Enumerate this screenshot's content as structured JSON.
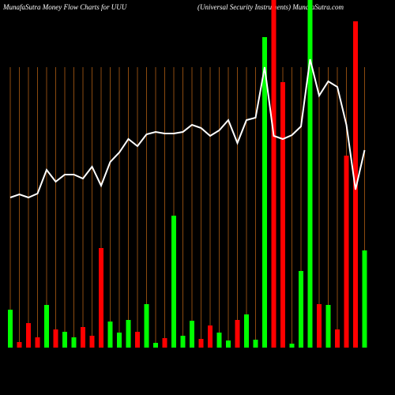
{
  "chart_data": {
    "type": "bar",
    "title": "MunafaSutra  Money Flow  Charts for UUU",
    "subtitle": "(Universal Security Instruments) MunafaSutra.com",
    "categories": [
      null,
      null,
      null,
      null,
      null,
      null,
      null,
      null,
      null,
      null,
      null,
      null,
      null,
      null,
      null,
      null,
      null,
      null,
      null,
      null,
      null,
      null,
      null,
      null,
      null,
      null,
      null,
      null,
      null,
      null,
      null,
      null,
      null,
      null,
      null,
      null,
      null,
      null,
      null,
      null
    ],
    "values": [
      48,
      7,
      31,
      13,
      54,
      23,
      20,
      13,
      26,
      15,
      126,
      33,
      19,
      35,
      20,
      55,
      6,
      12,
      167,
      15,
      34,
      11,
      28,
      19,
      9,
      35,
      42,
      10,
      393,
      440,
      336,
      5,
      97,
      440,
      55,
      54,
      23,
      243,
      413,
      123
    ],
    "colors": [
      "#00ff00",
      "#ff0000",
      "#ff0000",
      "#ff0000",
      "#00ff00",
      "#ff0000",
      "#00ff00",
      "#00ff00",
      "#ff0000",
      "#ff0000",
      "#ff0000",
      "#00ff00",
      "#00ff00",
      "#00ff00",
      "#ff0000",
      "#00ff00",
      "#00ff00",
      "#ff0000",
      "#00ff00",
      "#00ff00",
      "#00ff00",
      "#ff0000",
      "#ff0000",
      "#00ff00",
      "#00ff00",
      "#ff0000",
      "#00ff00",
      "#00ff00",
      "#00ff00",
      "#ff0000",
      "#ff0000",
      "#00ff00",
      "#00ff00",
      "#00ff00",
      "#ff0000",
      "#00ff00",
      "#ff0000",
      "#ff0000",
      "#ff0000",
      "#00ff00"
    ],
    "line_values": [
      190,
      194,
      190,
      195,
      225,
      210,
      219,
      219,
      214,
      229,
      205,
      235,
      247,
      264,
      255,
      270,
      273,
      271,
      271,
      273,
      282,
      278,
      268,
      275,
      288,
      259,
      288,
      291,
      355,
      268,
      264,
      269,
      280,
      365,
      319,
      337,
      330,
      282,
      200,
      250
    ],
    "line_color": "#ffffff",
    "grid_color": "#8b4a0f",
    "ylim": [
      0,
      440
    ]
  }
}
